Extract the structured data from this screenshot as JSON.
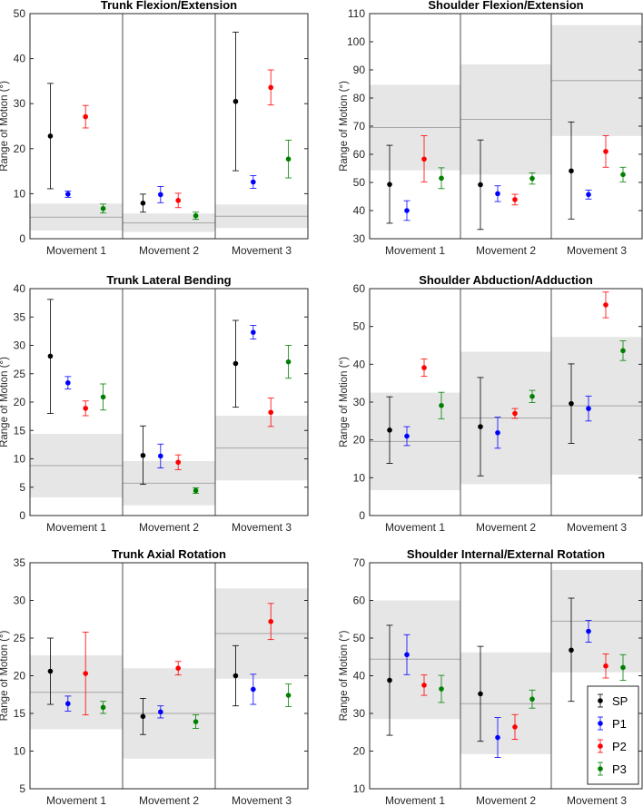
{
  "ylabel": "Range of Motion (°)",
  "legend": [
    {
      "label": "SP",
      "color": "#000000"
    },
    {
      "label": "P1",
      "color": "#0000ff"
    },
    {
      "label": "P2",
      "color": "#ff0000"
    },
    {
      "label": "P3",
      "color": "#008000"
    }
  ],
  "chart_data": [
    {
      "type": "scatter",
      "title": "Trunk Flexion/Extension",
      "xlabel": "",
      "ylabel": "Range of Motion (°)",
      "ylim": [
        0,
        50
      ],
      "yticks": [
        0,
        10,
        20,
        30,
        40,
        50
      ],
      "categories": [
        "Movement 1",
        "Movement 2",
        "Movement 3"
      ],
      "bands": [
        {
          "mean": 4.8,
          "low": 1.8,
          "high": 7.8
        },
        {
          "mean": 3.5,
          "low": 1.5,
          "high": 5.6
        },
        {
          "mean": 5.0,
          "low": 2.4,
          "high": 7.6
        }
      ],
      "series": [
        {
          "name": "SP",
          "values": [
            22.8,
            7.9,
            30.5
          ],
          "low": [
            11.1,
            5.9,
            15.1
          ],
          "high": [
            34.5,
            9.9,
            45.9
          ]
        },
        {
          "name": "P1",
          "values": [
            9.9,
            9.8,
            12.6
          ],
          "low": [
            9.2,
            8.0,
            11.2
          ],
          "high": [
            10.6,
            11.6,
            14.0
          ]
        },
        {
          "name": "P2",
          "values": [
            27.1,
            8.5,
            33.6
          ],
          "low": [
            24.6,
            6.9,
            29.7
          ],
          "high": [
            29.6,
            10.1,
            37.5
          ]
        },
        {
          "name": "P3",
          "values": [
            6.7,
            5.1,
            17.7
          ],
          "low": [
            5.7,
            4.3,
            13.5
          ],
          "high": [
            7.7,
            5.9,
            21.9
          ]
        }
      ]
    },
    {
      "type": "scatter",
      "title": "Shoulder Flexion/Extension",
      "xlabel": "",
      "ylabel": "Range of Motion (°)",
      "ylim": [
        30,
        110
      ],
      "yticks": [
        30,
        40,
        50,
        60,
        70,
        80,
        90,
        100,
        110
      ],
      "categories": [
        "Movement 1",
        "Movement 2",
        "Movement 3"
      ],
      "bands": [
        {
          "mean": 69.5,
          "low": 54.3,
          "high": 84.7
        },
        {
          "mean": 72.4,
          "low": 52.8,
          "high": 92.0
        },
        {
          "mean": 86.2,
          "low": 66.5,
          "high": 105.9
        }
      ],
      "series": [
        {
          "name": "SP",
          "values": [
            49.3,
            49.2,
            54.1
          ],
          "low": [
            35.5,
            33.3,
            37.0
          ],
          "high": [
            63.2,
            65.1,
            71.5
          ]
        },
        {
          "name": "P1",
          "values": [
            40.0,
            46.0,
            45.7
          ],
          "low": [
            36.5,
            43.2,
            44.1
          ],
          "high": [
            43.5,
            48.8,
            47.3
          ]
        },
        {
          "name": "P2",
          "values": [
            58.3,
            43.9,
            61.0
          ],
          "low": [
            50.2,
            42.0,
            55.4
          ],
          "high": [
            66.6,
            45.8,
            66.6
          ]
        },
        {
          "name": "P3",
          "values": [
            51.5,
            51.4,
            52.8
          ],
          "low": [
            47.8,
            49.4,
            50.2
          ],
          "high": [
            55.2,
            53.4,
            55.4
          ]
        }
      ]
    },
    {
      "type": "scatter",
      "title": "Trunk Lateral Bending",
      "xlabel": "",
      "ylabel": "Range of Motion (°)",
      "ylim": [
        0,
        40
      ],
      "yticks": [
        0,
        5,
        10,
        15,
        20,
        25,
        30,
        35,
        40
      ],
      "categories": [
        "Movement 1",
        "Movement 2",
        "Movement 3"
      ],
      "bands": [
        {
          "mean": 8.8,
          "low": 3.2,
          "high": 14.4
        },
        {
          "mean": 5.7,
          "low": 1.8,
          "high": 9.6
        },
        {
          "mean": 11.9,
          "low": 6.2,
          "high": 17.6
        }
      ],
      "series": [
        {
          "name": "SP",
          "values": [
            28.1,
            10.6,
            26.8
          ],
          "low": [
            18.0,
            5.5,
            19.1
          ],
          "high": [
            38.1,
            15.8,
            34.4
          ]
        },
        {
          "name": "P1",
          "values": [
            23.4,
            10.5,
            32.3
          ],
          "low": [
            22.3,
            8.4,
            31.1
          ],
          "high": [
            24.5,
            12.6,
            33.5
          ]
        },
        {
          "name": "P2",
          "values": [
            18.9,
            9.4,
            18.2
          ],
          "low": [
            17.6,
            8.1,
            15.7
          ],
          "high": [
            20.2,
            10.7,
            20.7
          ]
        },
        {
          "name": "P3",
          "values": [
            20.9,
            4.4,
            27.1
          ],
          "low": [
            18.6,
            3.9,
            24.2
          ],
          "high": [
            23.2,
            4.9,
            30.0
          ]
        }
      ]
    },
    {
      "type": "scatter",
      "title": "Shoulder Abduction/Adduction",
      "xlabel": "",
      "ylabel": "Range of Motion (°)",
      "ylim": [
        0,
        60
      ],
      "yticks": [
        0,
        10,
        20,
        30,
        40,
        50,
        60
      ],
      "categories": [
        "Movement 1",
        "Movement 2",
        "Movement 3"
      ],
      "bands": [
        {
          "mean": 19.6,
          "low": 6.7,
          "high": 32.5
        },
        {
          "mean": 25.8,
          "low": 8.3,
          "high": 43.3
        },
        {
          "mean": 29.0,
          "low": 10.8,
          "high": 47.2
        }
      ],
      "series": [
        {
          "name": "SP",
          "values": [
            22.6,
            23.5,
            29.6
          ],
          "low": [
            13.8,
            10.5,
            19.1
          ],
          "high": [
            31.4,
            36.5,
            40.1
          ]
        },
        {
          "name": "P1",
          "values": [
            21.0,
            21.9,
            28.3
          ],
          "low": [
            18.5,
            17.8,
            25.0
          ],
          "high": [
            23.5,
            26.0,
            31.6
          ]
        },
        {
          "name": "P2",
          "values": [
            39.1,
            27.0,
            55.7
          ],
          "low": [
            36.8,
            25.7,
            52.3
          ],
          "high": [
            41.4,
            28.3,
            59.1
          ]
        },
        {
          "name": "P3",
          "values": [
            29.1,
            31.5,
            43.6
          ],
          "low": [
            25.6,
            29.9,
            41.0
          ],
          "high": [
            32.6,
            33.1,
            46.2
          ]
        }
      ]
    },
    {
      "type": "scatter",
      "title": "Trunk Axial Rotation",
      "xlabel": "",
      "ylabel": "Range of Motion (°)",
      "ylim": [
        5,
        35
      ],
      "yticks": [
        5,
        10,
        15,
        20,
        25,
        30,
        35
      ],
      "categories": [
        "Movement 1",
        "Movement 2",
        "Movement 3"
      ],
      "bands": [
        {
          "mean": 17.8,
          "low": 12.9,
          "high": 22.7
        },
        {
          "mean": 15.0,
          "low": 9.0,
          "high": 21.0
        },
        {
          "mean": 25.6,
          "low": 19.6,
          "high": 31.6
        }
      ],
      "series": [
        {
          "name": "SP",
          "values": [
            20.6,
            14.6,
            20.0
          ],
          "low": [
            16.2,
            12.2,
            16.0
          ],
          "high": [
            25.0,
            17.0,
            24.0
          ]
        },
        {
          "name": "P1",
          "values": [
            16.3,
            15.2,
            18.2
          ],
          "low": [
            15.3,
            14.4,
            16.2
          ],
          "high": [
            17.3,
            16.0,
            20.2
          ]
        },
        {
          "name": "P2",
          "values": [
            20.3,
            21.0,
            27.2
          ],
          "low": [
            14.8,
            20.1,
            24.8
          ],
          "high": [
            25.8,
            21.9,
            29.6
          ]
        },
        {
          "name": "P3",
          "values": [
            15.8,
            13.9,
            17.4
          ],
          "low": [
            15.0,
            13.0,
            15.9
          ],
          "high": [
            16.6,
            14.8,
            18.9
          ]
        }
      ]
    },
    {
      "type": "scatter",
      "title": "Shoulder Internal/External Rotation",
      "xlabel": "",
      "ylabel": "Range of Motion (°)",
      "ylim": [
        10,
        70
      ],
      "yticks": [
        10,
        20,
        30,
        40,
        50,
        60,
        70
      ],
      "categories": [
        "Movement 1",
        "Movement 2",
        "Movement 3"
      ],
      "bands": [
        {
          "mean": 44.4,
          "low": 28.5,
          "high": 60.0
        },
        {
          "mean": 32.6,
          "low": 19.2,
          "high": 46.2
        },
        {
          "mean": 54.5,
          "low": 40.9,
          "high": 68.1
        }
      ],
      "series": [
        {
          "name": "SP",
          "values": [
            38.8,
            35.2,
            46.8
          ],
          "low": [
            24.2,
            22.6,
            33.2
          ],
          "high": [
            53.4,
            47.8,
            60.6
          ]
        },
        {
          "name": "P1",
          "values": [
            45.6,
            23.6,
            51.8
          ],
          "low": [
            40.3,
            18.3,
            48.9
          ],
          "high": [
            50.9,
            28.9,
            54.7
          ]
        },
        {
          "name": "P2",
          "values": [
            37.5,
            26.4,
            42.6
          ],
          "low": [
            34.8,
            23.1,
            39.4
          ],
          "high": [
            40.2,
            29.7,
            45.8
          ]
        },
        {
          "name": "P3",
          "values": [
            36.5,
            33.8,
            42.2
          ],
          "low": [
            32.9,
            31.4,
            38.8
          ],
          "high": [
            40.1,
            36.2,
            45.6
          ]
        }
      ]
    }
  ]
}
